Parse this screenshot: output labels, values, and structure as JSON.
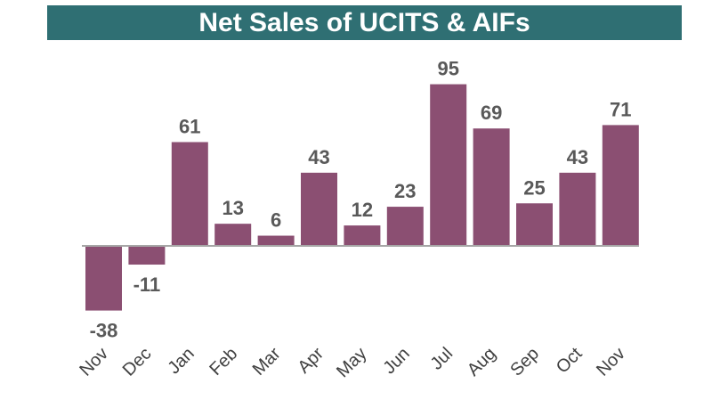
{
  "colors": {
    "title_background": "#2f6f73",
    "bar_fill": "#8b4f72",
    "axis_line": "#a6a6a6"
  },
  "chart_data": {
    "type": "bar",
    "title": "Net Sales of UCITS & AIFs",
    "categories": [
      "Nov",
      "Dec",
      "Jan",
      "Feb",
      "Mar",
      "Apr",
      "May",
      "Jun",
      "Jul",
      "Aug",
      "Sep",
      "Oct",
      "Nov"
    ],
    "values": [
      -38,
      -11,
      61,
      13,
      6,
      43,
      12,
      23,
      95,
      69,
      25,
      43,
      71
    ],
    "data_labels": [
      "-38",
      "-11",
      "61",
      "13",
      "6",
      "43",
      "12",
      "23",
      "95",
      "69",
      "25",
      "43",
      "71"
    ],
    "xlabel": "",
    "ylabel": "",
    "ylim": [
      -40,
      95
    ],
    "grid": false,
    "legend": "none"
  }
}
